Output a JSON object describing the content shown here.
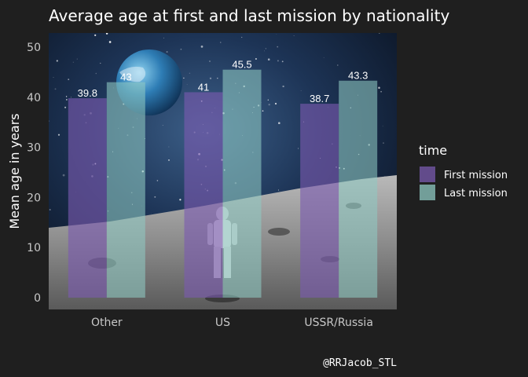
{
  "chart_data": {
    "type": "bar",
    "title": "Average age at first and last mission by nationality",
    "xlabel": "",
    "ylabel": "Mean age in years",
    "categories": [
      "Other",
      "US",
      "USSR/Russia"
    ],
    "series": [
      {
        "name": "First mission",
        "values": [
          39.8,
          41,
          38.7
        ],
        "labels": [
          "39.8",
          "41",
          "38.7"
        ],
        "color": "#7a5bb0"
      },
      {
        "name": "Last mission",
        "values": [
          43,
          45.5,
          43.3
        ],
        "labels": [
          "43",
          "45.5",
          "43.3"
        ],
        "color": "#8fc9c3"
      }
    ],
    "ylim": [
      0,
      52.8
    ],
    "yticks": [
      0,
      10,
      20,
      30,
      40,
      50
    ],
    "ytick_labels": [
      "0",
      "10",
      "20",
      "30",
      "40",
      "50"
    ],
    "grid": false,
    "legend": {
      "title": "time",
      "position": "right"
    },
    "background_image": "space-moon-astronaut"
  },
  "caption": "@RRJacob_STL",
  "colors": {
    "page_bg": "#1f1f1f",
    "text": "#ffffff",
    "tick_text": "#c8c8c8"
  }
}
